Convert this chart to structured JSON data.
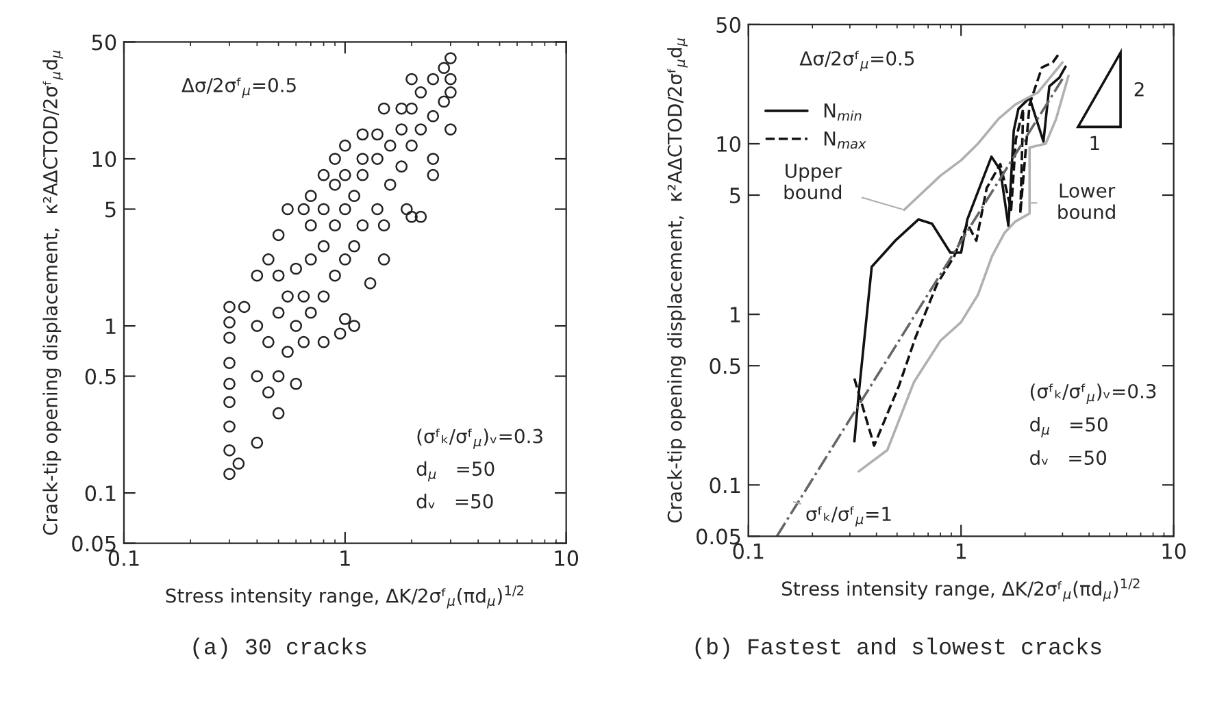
{
  "chart_data": [
    {
      "type": "scatter",
      "title": "(a) 30 cracks",
      "xlabel": "Stress intensity range, ΔK/2σᶠ$_{μ}$(πd$_{μ}$)$^{1/2}$",
      "ylabel": "Crack-tip opening displacement,  κ²AΔCTOD/2σᶠ$_{μ}$d$_{μ}$",
      "log": "xy",
      "xlim": [
        0.1,
        10
      ],
      "ylim": [
        0.05,
        50
      ],
      "xticks": [
        0.1,
        1,
        10
      ],
      "yticks": [
        0.05,
        0.1,
        0.5,
        1,
        5,
        10,
        50
      ],
      "grid": false,
      "legend": false,
      "marker": "circle",
      "series": [
        {
          "color": "#222222",
          "x": [
            0.3,
            0.3,
            0.3,
            0.3,
            0.3,
            0.3,
            0.3,
            0.3,
            0.3,
            0.33,
            0.4,
            0.5,
            0.6,
            0.8,
            1,
            1.3,
            1.5,
            2,
            2.5,
            3,
            0.35,
            0.4,
            0.45,
            0.5,
            0.55,
            0.65,
            0.7,
            0.8,
            0.9,
            1,
            1.2,
            1.5,
            2,
            3,
            2.2,
            1.9,
            2.5,
            1.5,
            1.1,
            0.95,
            0.4,
            0.4,
            0.45,
            0.45,
            0.5,
            0.5,
            0.5,
            0.55,
            0.55,
            0.6,
            0.6,
            0.65,
            0.65,
            0.7,
            0.7,
            0.7,
            0.8,
            0.8,
            0.8,
            0.9,
            0.9,
            0.9,
            1,
            1,
            1,
            1.1,
            1.1,
            1.2,
            1.2,
            1.2,
            1.4,
            1.4,
            1.4,
            1.6,
            1.6,
            1.8,
            1.8,
            1.8,
            2,
            2,
            2.2,
            2.2,
            2.5,
            2.5,
            2.8,
            2.8,
            3,
            3
          ],
          "values": [
            0.13,
            0.18,
            0.25,
            0.35,
            0.45,
            0.6,
            0.85,
            1.05,
            1.3,
            0.15,
            0.2,
            0.3,
            0.45,
            0.8,
            1.1,
            1.8,
            2.5,
            4.5,
            8,
            15,
            1.3,
            2,
            2.5,
            3.5,
            5,
            5,
            6,
            8,
            10,
            12,
            14,
            20,
            30,
            40,
            4.5,
            5,
            10,
            4,
            1,
            0.9,
            0.5,
            1,
            0.4,
            0.8,
            0.5,
            1.2,
            2,
            0.7,
            1.5,
            1,
            2.2,
            0.8,
            1.5,
            1.2,
            2.5,
            4,
            1.5,
            3,
            5,
            2,
            4,
            7,
            2.5,
            5,
            8,
            3,
            6,
            4,
            8,
            10,
            5,
            10,
            14,
            7,
            12,
            9,
            15,
            20,
            12,
            20,
            15,
            25,
            18,
            30,
            22,
            35,
            25,
            30
          ]
        }
      ],
      "annotations": [
        "Δσ/2σᶠ$_{μ}$=0.5",
        "(σᶠₖ/σᶠ$_{μ}$)ᵥ=0.3",
        "d$_{μ}$   =50",
        "dᵥ   =50"
      ]
    },
    {
      "type": "line",
      "title": "(b) Fastest and slowest cracks",
      "xlabel": "Stress intensity range, ΔK/2σᶠ$_{μ}$(πd$_{μ}$)$^{1/2}$",
      "ylabel": "Crack-tip opening displacement,  κ²AΔCTOD/2σᶠ$_{μ}$d$_{μ}$",
      "log": "xy",
      "xlim": [
        0.1,
        10
      ],
      "ylim": [
        0.05,
        50
      ],
      "xticks": [
        0.1,
        1,
        10
      ],
      "yticks": [
        0.05,
        0.1,
        0.5,
        1,
        5,
        10,
        50
      ],
      "grid": false,
      "legend": "top left",
      "marker": "none",
      "series": [
        {
          "name": "N$_{min}$",
          "color": "#111111",
          "line_style": "solid",
          "x": [
            0.315,
            0.33,
            0.38,
            0.49,
            0.63,
            0.73,
            0.89,
            1.0,
            1.07,
            1.29,
            1.39,
            1.53,
            1.67,
            1.77,
            1.86,
            2.1,
            2.44,
            2.6,
            2.9,
            3.1
          ],
          "values": [
            0.18,
            0.34,
            1.9,
            2.7,
            3.6,
            3.4,
            2.3,
            2.3,
            3.6,
            6.6,
            8.4,
            7.0,
            3.3,
            12,
            16,
            18.6,
            10.3,
            21.7,
            24.4,
            28.3
          ]
        },
        {
          "name": "N$_{max}$",
          "color": "#111111",
          "line_style": "dashed",
          "x": [
            0.315,
            0.39,
            0.51,
            0.61,
            0.77,
            0.93,
            1.07,
            1.18,
            1.32,
            1.53,
            1.72,
            1.81,
            1.96,
            1.9,
            2.1,
            2.4,
            2.7,
            2.9
          ],
          "values": [
            0.42,
            0.17,
            0.38,
            0.73,
            1.5,
            2.2,
            3.4,
            2.7,
            5.5,
            7.6,
            4.1,
            10.6,
            16,
            3.9,
            17,
            28,
            30,
            34
          ]
        },
        {
          "color": "#666666",
          "line_style": "dashdot",
          "x": [
            0.136,
            3.0
          ],
          "values": [
            0.05,
            24
          ]
        },
        {
          "color": "#b0b0b0",
          "line_style": "solid",
          "x": [
            0.54,
            0.8,
            1.0,
            1.2,
            1.5,
            1.8,
            2.3,
            3.0
          ],
          "values": [
            4.1,
            6.5,
            8,
            10,
            14,
            17,
            20,
            30
          ]
        },
        {
          "color": "#b0b0b0",
          "line_style": "solid",
          "x": [
            0.33,
            0.45,
            0.6,
            0.8,
            1.0,
            1.2,
            1.4,
            1.6,
            1.8,
            2.1,
            2.1,
            2.5,
            2.8,
            3.2
          ],
          "values": [
            0.12,
            0.16,
            0.4,
            0.7,
            0.9,
            1.3,
            2.2,
            3.0,
            3.5,
            3.9,
            9.5,
            10,
            14,
            25
          ]
        }
      ],
      "annotations": [
        "Δσ/2σᶠ$_{μ}$=0.5",
        "(σᶠₖ/σᶠ$_{μ}$)ᵥ=0.3",
        "d$_{μ}$   =50",
        "dᵥ   =50",
        "1",
        "2",
        {
          "text": "Upper\nbound",
          "x": 0.54,
          "y": 4.1
        },
        {
          "text": "Lower\nbound",
          "x": 2.1,
          "y": 4.5
        },
        {
          "text": "σᶠₖ/σᶠ$_{μ}$=1",
          "x": 0.16,
          "y": 0.08
        }
      ]
    }
  ]
}
